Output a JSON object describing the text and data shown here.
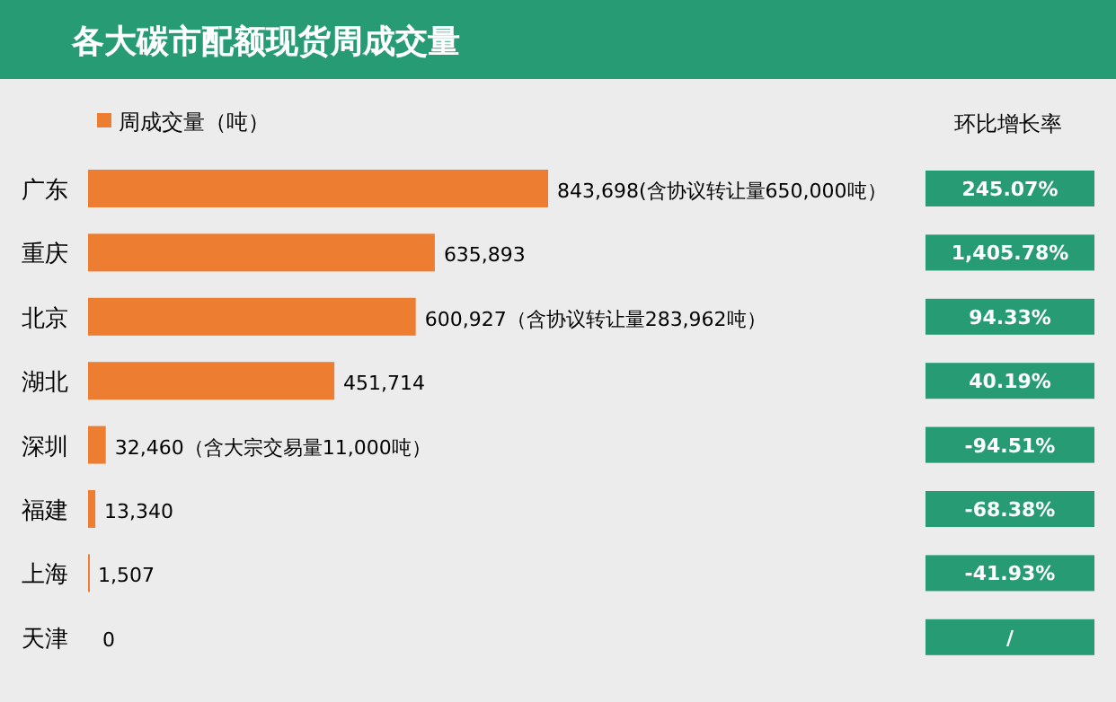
{
  "chart_data": {
    "type": "bar",
    "orientation": "horizontal",
    "title": "各大碳市配额现货周成交量",
    "categories": [
      "广东",
      "重庆",
      "北京",
      "湖北",
      "深圳",
      "福建",
      "上海",
      "天津"
    ],
    "series": [
      {
        "name": "周成交量（吨）",
        "color": "#ed7d31",
        "values": [
          843698,
          635893,
          600927,
          451714,
          32460,
          13340,
          1507,
          0
        ],
        "value_labels": [
          "843,698(含协议转让量650,000吨）",
          "635,893",
          "600,927（含协议转让量283,962吨）",
          "451,714",
          "32,460（含大宗交易量11,000吨）",
          "13,340",
          "1,507",
          "0"
        ]
      }
    ],
    "legend": "top left",
    "annotations": [
      "环比增长率",
      "245.07%",
      "1,405.78%",
      "94.33%",
      "40.19%",
      "-94.51%",
      "-68.38%",
      "-41.93%",
      "/"
    ]
  }
}
